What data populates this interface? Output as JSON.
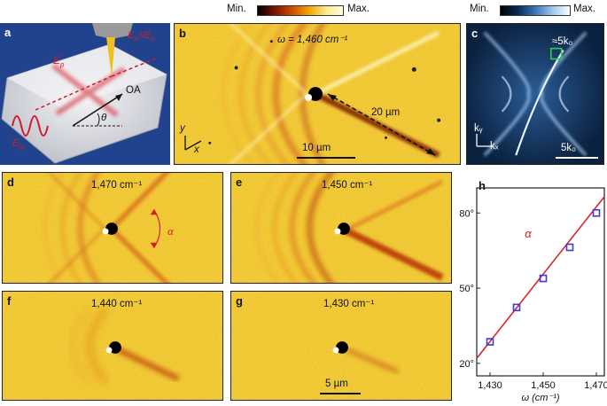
{
  "colorbar_nf": {
    "min": "Min.",
    "max": "Max.",
    "gradient": [
      "#000000",
      "#7a1500",
      "#d24a00",
      "#f0a400",
      "#f8ec8a",
      "#fffbe6"
    ]
  },
  "colorbar_ft": {
    "min": "Min.",
    "max": "Max.",
    "gradient": [
      "#000000",
      "#0a2a55",
      "#3a74b8",
      "#9ec8ee",
      "#ffffff"
    ]
  },
  "panel_a": {
    "label": "a",
    "labels": {
      "ep_top": "E",
      "ep_sub": "p",
      "eon": "E",
      "eon_sub": "in",
      "oa": "OA",
      "theta": "θ",
      "eon_right": "E",
      "eon_right_sub": "in",
      "ep_right": "E",
      "ep_right_sub": "p",
      "slash": "//"
    }
  },
  "panel_b": {
    "label": "b",
    "omega": "ω = 1,460 cm⁻¹",
    "distance": "20 µm",
    "scale": "10 µm",
    "axis_x": "x",
    "axis_y": "y"
  },
  "panel_c": {
    "label": "c",
    "k5": "≈5k₀",
    "kx": "kₓ",
    "ky": "kᵧ",
    "scale": "5k₀"
  },
  "panel_d": {
    "label": "d",
    "freq": "1,470 cm⁻¹",
    "angle": "α"
  },
  "panel_e": {
    "label": "e",
    "freq": "1,450 cm⁻¹"
  },
  "panel_f": {
    "label": "f",
    "freq": "1,440 cm⁻¹"
  },
  "panel_g": {
    "label": "g",
    "freq": "1,430 cm⁻¹",
    "scale": "5 µm"
  },
  "panel_h": {
    "label": "h"
  },
  "chart_data": {
    "type": "scatter",
    "title": "",
    "xlabel": "ω (cm⁻¹)",
    "ylabel": "",
    "annotation": "α",
    "x": [
      1430,
      1440,
      1450,
      1460,
      1470
    ],
    "xlim": [
      1425,
      1473
    ],
    "ylim": [
      15,
      90
    ],
    "xticks": [
      1430,
      1450,
      1470
    ],
    "xtick_labels": [
      "1,430",
      "1,450",
      "1,470"
    ],
    "yticks": [
      20,
      50,
      80
    ],
    "ytick_labels": [
      "20°",
      "50°",
      "80°"
    ],
    "series": [
      {
        "values": [
          28.6,
          42.3,
          53.9,
          66.3,
          80.0
        ],
        "marker": "square",
        "color": "#3b3bd6"
      }
    ],
    "fit": {
      "x": [
        1425,
        1473
      ],
      "y": [
        22,
        86.5
      ],
      "color": "#d8262b"
    },
    "grid": false,
    "legend": "none"
  }
}
